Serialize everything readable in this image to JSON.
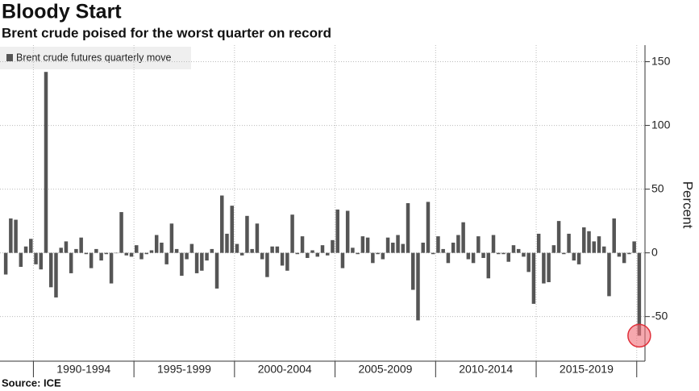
{
  "chart_data": {
    "type": "bar",
    "title": "Bloody Start",
    "subtitle": "Brent crude poised for the worst quarter on record",
    "source": "Source: ICE",
    "y_axis_label": "Percent",
    "series_name": "Brent crude futures quarterly move",
    "color": "#555555",
    "ylim": [
      -85,
      163
    ],
    "yticks": [
      -50,
      0,
      50,
      100,
      150
    ],
    "grid": true,
    "groups": [
      {
        "label": null,
        "values": [
          -17,
          27,
          26,
          -11,
          5,
          11
        ]
      },
      {
        "label": "1990-1994",
        "values": [
          -9,
          -13,
          142,
          -27,
          -35,
          4,
          9,
          -16,
          3,
          12,
          -1,
          -12,
          3,
          -6,
          -1,
          -24,
          0,
          32,
          -2,
          -3
        ]
      },
      {
        "label": "1995-1999",
        "values": [
          6,
          -5,
          -1,
          2,
          14,
          8,
          -9,
          23,
          3,
          -18,
          -5,
          7,
          -16,
          -14,
          -6,
          3,
          -28,
          45,
          15,
          37
        ]
      },
      {
        "label": "2000-2004",
        "values": [
          7,
          -2,
          29,
          3,
          23,
          -5,
          -19,
          5,
          5,
          -10,
          -14,
          30,
          -1,
          13,
          -4,
          2,
          -3,
          6,
          -2,
          10
        ]
      },
      {
        "label": "2005-2009",
        "values": [
          34,
          -12,
          33,
          4,
          -1,
          13,
          12,
          -8,
          -1,
          -5,
          12,
          8,
          14,
          7,
          39,
          -29,
          -53,
          8,
          40,
          -1
        ]
      },
      {
        "label": "2010-2014",
        "values": [
          13,
          3,
          -8,
          8,
          14,
          24,
          -5,
          -8,
          13,
          -4,
          -20,
          14,
          -1,
          -1,
          -7,
          6,
          3,
          -3,
          -15,
          -40
        ]
      },
      {
        "label": "2015-2019",
        "values": [
          15,
          -24,
          -23,
          6,
          25,
          -1,
          15,
          -6,
          -9,
          20,
          17,
          9,
          13,
          5,
          -34,
          27,
          -3,
          -8,
          -1,
          9
        ]
      },
      {
        "label": null,
        "values": [
          -65
        ]
      }
    ]
  }
}
